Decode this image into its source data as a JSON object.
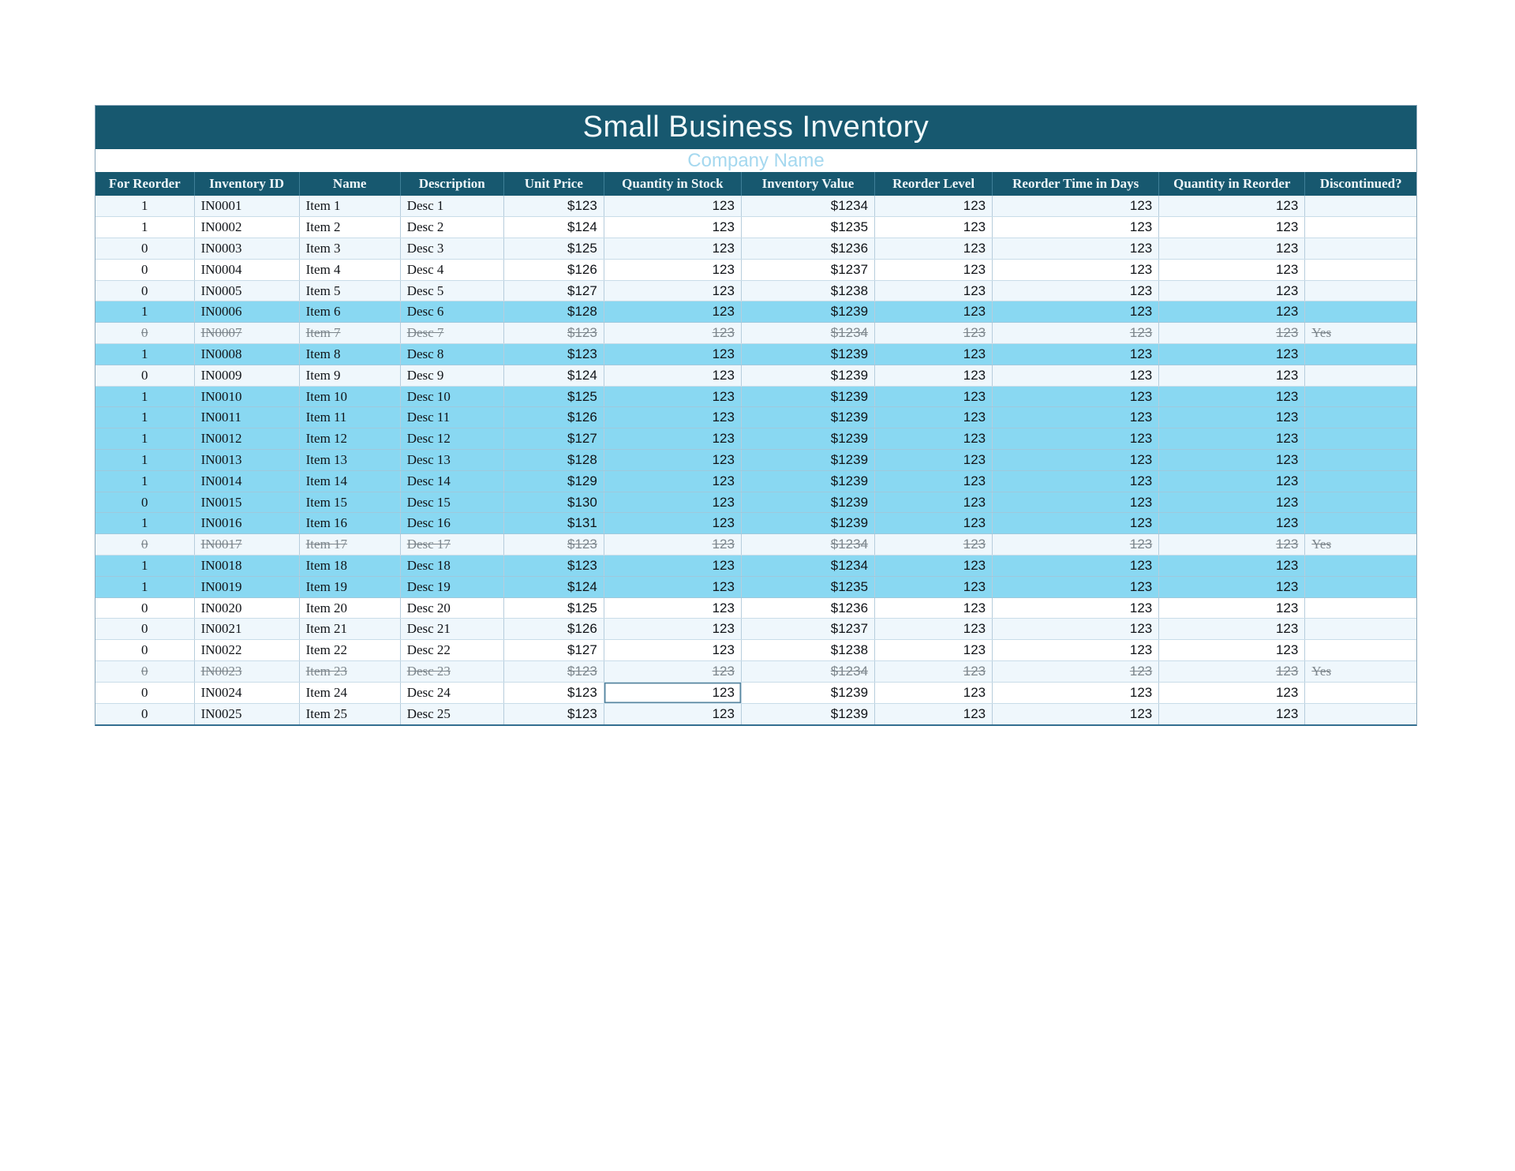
{
  "title": "Small Business Inventory",
  "company_name": "Company Name",
  "colors": {
    "header_bg": "#17586f",
    "title_text": "#f2fafc",
    "company_text": "#a5d8ef",
    "highlight": "#89d8f2"
  },
  "table": {
    "columns": [
      "For Reorder",
      "Inventory ID",
      "Name",
      "Description",
      "Unit Price",
      "Quantity in Stock",
      "Inventory Value",
      "Reorder Level",
      "Reorder Time in Days",
      "Quantity in Reorder",
      "Discontinued?"
    ],
    "rows": [
      {
        "cells": [
          "1",
          "IN0001",
          "Item 1",
          "Desc 1",
          "$123",
          "123",
          "$1234",
          "123",
          "123",
          "123",
          ""
        ],
        "highlighted": false,
        "discontinued": false
      },
      {
        "cells": [
          "1",
          "IN0002",
          "Item 2",
          "Desc 2",
          "$124",
          "123",
          "$1235",
          "123",
          "123",
          "123",
          ""
        ],
        "highlighted": false,
        "discontinued": false
      },
      {
        "cells": [
          "0",
          "IN0003",
          "Item 3",
          "Desc 3",
          "$125",
          "123",
          "$1236",
          "123",
          "123",
          "123",
          ""
        ],
        "highlighted": false,
        "discontinued": false
      },
      {
        "cells": [
          "0",
          "IN0004",
          "Item 4",
          "Desc 4",
          "$126",
          "123",
          "$1237",
          "123",
          "123",
          "123",
          ""
        ],
        "highlighted": false,
        "discontinued": false
      },
      {
        "cells": [
          "0",
          "IN0005",
          "Item 5",
          "Desc 5",
          "$127",
          "123",
          "$1238",
          "123",
          "123",
          "123",
          ""
        ],
        "highlighted": false,
        "discontinued": false
      },
      {
        "cells": [
          "1",
          "IN0006",
          "Item 6",
          "Desc 6",
          "$128",
          "123",
          "$1239",
          "123",
          "123",
          "123",
          ""
        ],
        "highlighted": true,
        "discontinued": false
      },
      {
        "cells": [
          "0",
          "IN0007",
          "Item 7",
          "Desc 7",
          "$123",
          "123",
          "$1234",
          "123",
          "123",
          "123",
          "Yes"
        ],
        "highlighted": false,
        "discontinued": true
      },
      {
        "cells": [
          "1",
          "IN0008",
          "Item 8",
          "Desc 8",
          "$123",
          "123",
          "$1239",
          "123",
          "123",
          "123",
          ""
        ],
        "highlighted": true,
        "discontinued": false
      },
      {
        "cells": [
          "0",
          "IN0009",
          "Item 9",
          "Desc 9",
          "$124",
          "123",
          "$1239",
          "123",
          "123",
          "123",
          ""
        ],
        "highlighted": false,
        "discontinued": false
      },
      {
        "cells": [
          "1",
          "IN0010",
          "Item 10",
          "Desc 10",
          "$125",
          "123",
          "$1239",
          "123",
          "123",
          "123",
          ""
        ],
        "highlighted": true,
        "discontinued": false
      },
      {
        "cells": [
          "1",
          "IN0011",
          "Item 11",
          "Desc 11",
          "$126",
          "123",
          "$1239",
          "123",
          "123",
          "123",
          ""
        ],
        "highlighted": true,
        "discontinued": false
      },
      {
        "cells": [
          "1",
          "IN0012",
          "Item 12",
          "Desc 12",
          "$127",
          "123",
          "$1239",
          "123",
          "123",
          "123",
          ""
        ],
        "highlighted": true,
        "discontinued": false
      },
      {
        "cells": [
          "1",
          "IN0013",
          "Item 13",
          "Desc 13",
          "$128",
          "123",
          "$1239",
          "123",
          "123",
          "123",
          ""
        ],
        "highlighted": true,
        "discontinued": false
      },
      {
        "cells": [
          "1",
          "IN0014",
          "Item 14",
          "Desc 14",
          "$129",
          "123",
          "$1239",
          "123",
          "123",
          "123",
          ""
        ],
        "highlighted": true,
        "discontinued": false
      },
      {
        "cells": [
          "0",
          "IN0015",
          "Item 15",
          "Desc 15",
          "$130",
          "123",
          "$1239",
          "123",
          "123",
          "123",
          ""
        ],
        "highlighted": true,
        "discontinued": false
      },
      {
        "cells": [
          "1",
          "IN0016",
          "Item 16",
          "Desc 16",
          "$131",
          "123",
          "$1239",
          "123",
          "123",
          "123",
          ""
        ],
        "highlighted": true,
        "discontinued": false
      },
      {
        "cells": [
          "0",
          "IN0017",
          "Item 17",
          "Desc 17",
          "$123",
          "123",
          "$1234",
          "123",
          "123",
          "123",
          "Yes"
        ],
        "highlighted": false,
        "discontinued": true
      },
      {
        "cells": [
          "1",
          "IN0018",
          "Item 18",
          "Desc 18",
          "$123",
          "123",
          "$1234",
          "123",
          "123",
          "123",
          ""
        ],
        "highlighted": true,
        "discontinued": false
      },
      {
        "cells": [
          "1",
          "IN0019",
          "Item 19",
          "Desc 19",
          "$124",
          "123",
          "$1235",
          "123",
          "123",
          "123",
          ""
        ],
        "highlighted": true,
        "discontinued": false
      },
      {
        "cells": [
          "0",
          "IN0020",
          "Item 20",
          "Desc 20",
          "$125",
          "123",
          "$1236",
          "123",
          "123",
          "123",
          ""
        ],
        "highlighted": false,
        "discontinued": false
      },
      {
        "cells": [
          "0",
          "IN0021",
          "Item 21",
          "Desc 21",
          "$126",
          "123",
          "$1237",
          "123",
          "123",
          "123",
          ""
        ],
        "highlighted": false,
        "discontinued": false
      },
      {
        "cells": [
          "0",
          "IN0022",
          "Item 22",
          "Desc 22",
          "$127",
          "123",
          "$1238",
          "123",
          "123",
          "123",
          ""
        ],
        "highlighted": false,
        "discontinued": false
      },
      {
        "cells": [
          "0",
          "IN0023",
          "Item 23",
          "Desc 23",
          "$123",
          "123",
          "$1234",
          "123",
          "123",
          "123",
          "Yes"
        ],
        "highlighted": false,
        "discontinued": true
      },
      {
        "cells": [
          "0",
          "IN0024",
          "Item 24",
          "Desc 24",
          "$123",
          "123",
          "$1239",
          "123",
          "123",
          "123",
          ""
        ],
        "highlighted": false,
        "discontinued": false,
        "selected_col": 5
      },
      {
        "cells": [
          "0",
          "IN0025",
          "Item 25",
          "Desc 25",
          "$123",
          "123",
          "$1239",
          "123",
          "123",
          "123",
          ""
        ],
        "highlighted": false,
        "discontinued": false
      }
    ]
  }
}
